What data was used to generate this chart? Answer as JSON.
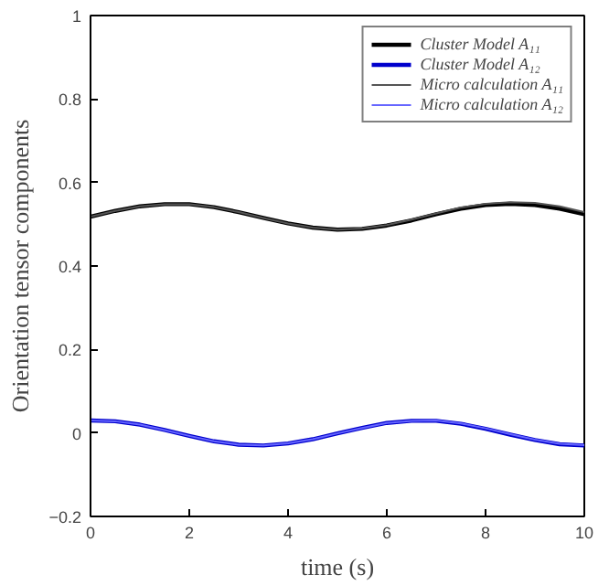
{
  "chart_data": {
    "type": "line",
    "xlabel": "time (s)",
    "ylabel": "Orientation tensor components",
    "x": [
      0,
      0.5,
      1,
      1.5,
      2,
      2.5,
      3,
      3.5,
      4,
      4.5,
      5,
      5.5,
      6,
      6.5,
      7,
      7.5,
      8,
      8.5,
      9,
      9.5,
      10
    ],
    "series": [
      {
        "name": "Cluster Model A₁₁",
        "color": "#000000",
        "values": [
          0.518,
          0.532,
          0.543,
          0.548,
          0.548,
          0.541,
          0.529,
          0.515,
          0.502,
          0.492,
          0.487,
          0.489,
          0.497,
          0.509,
          0.524,
          0.537,
          0.546,
          0.549,
          0.546,
          0.537,
          0.524
        ]
      },
      {
        "name": "Cluster Model A₁₂",
        "color": "#0000cc",
        "values": [
          0.03,
          0.028,
          0.02,
          0.007,
          -0.007,
          -0.02,
          -0.028,
          -0.03,
          -0.025,
          -0.015,
          -0.001,
          0.012,
          0.024,
          0.029,
          0.029,
          0.022,
          0.01,
          -0.004,
          -0.017,
          -0.027,
          -0.03
        ]
      },
      {
        "name": "Micro calculation A₁₁",
        "color": "#555555",
        "values": [
          0.518,
          0.532,
          0.543,
          0.548,
          0.548,
          0.541,
          0.529,
          0.515,
          0.502,
          0.492,
          0.487,
          0.49,
          0.498,
          0.511,
          0.526,
          0.54,
          0.549,
          0.553,
          0.551,
          0.543,
          0.529
        ]
      },
      {
        "name": "Micro calculation A₁₂",
        "color": "#6666ff",
        "values": [
          0.03,
          0.028,
          0.02,
          0.007,
          -0.007,
          -0.02,
          -0.028,
          -0.03,
          -0.025,
          -0.015,
          -0.001,
          0.012,
          0.024,
          0.029,
          0.03,
          0.023,
          0.011,
          -0.003,
          -0.016,
          -0.026,
          -0.029
        ]
      }
    ],
    "xlim": [
      0,
      10
    ],
    "ylim": [
      -0.2,
      1
    ],
    "xticks": [
      0,
      2,
      4,
      6,
      8,
      10
    ],
    "yticks": [
      {
        "value": -0.2,
        "label": "−0.2"
      },
      0,
      0.2,
      0.4,
      0.6,
      0.8,
      1
    ],
    "legend": "top right"
  }
}
